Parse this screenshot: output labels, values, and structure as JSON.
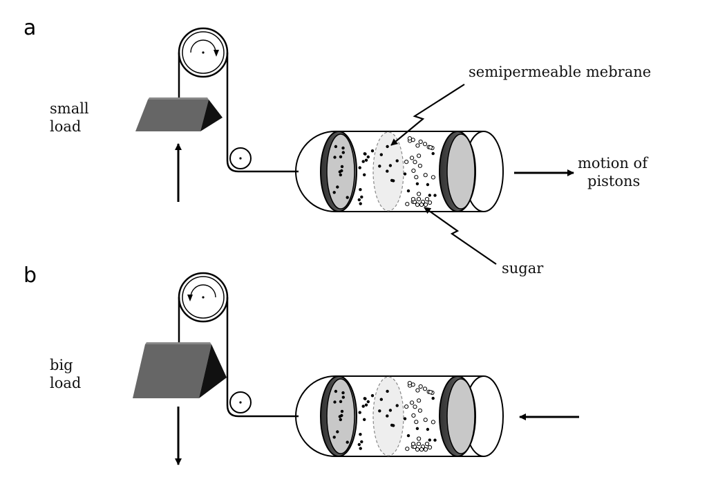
{
  "panel_a": {
    "letter": "a",
    "load_label_line1": "small",
    "load_label_line2": "load",
    "membrane_label": "semipermeable mebrane",
    "motion_label_line1": "motion of",
    "motion_label_line2": "pistons",
    "sugar_label": "sugar",
    "wheel_rotation": "clockwise",
    "load_arrow": "up",
    "piston_arrow": "right"
  },
  "panel_b": {
    "letter": "b",
    "load_label_line1": "big",
    "load_label_line2": "load",
    "wheel_rotation": "counter-clockwise",
    "load_arrow": "down",
    "piston_arrow": "left"
  },
  "colors": {
    "load_front": "#666666",
    "load_top": "#888888",
    "load_side": "#111111",
    "piston_face": "#c8c8c8",
    "piston_rim": "#555555",
    "membrane_fill": "#eeeeee"
  }
}
